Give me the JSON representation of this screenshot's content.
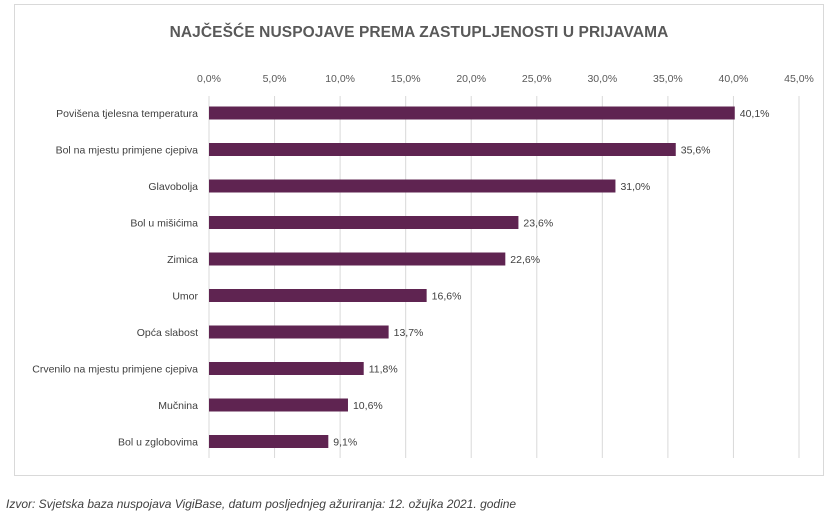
{
  "chart_data": {
    "type": "bar",
    "orientation": "horizontal",
    "title": "NAJČEŠĆE NUSPOJAVE PREMA ZASTUPLJENOSTI U PRIJAVAMA",
    "categories": [
      "Povišena tjelesna temperatura",
      "Bol na mjestu primjene cjepiva",
      "Glavobolja",
      "Bol u mišićima",
      "Zimica",
      "Umor",
      "Opća slabost",
      "Crvenilo na mjestu primjene cjepiva",
      "Mučnina",
      "Bol u zglobovima"
    ],
    "values": [
      40.1,
      35.6,
      31.0,
      23.6,
      22.6,
      16.6,
      13.7,
      11.8,
      10.6,
      9.1
    ],
    "value_labels": [
      "40,1%",
      "35,6%",
      "31,0%",
      "23,6%",
      "22,6%",
      "16,6%",
      "13,7%",
      "11,8%",
      "10,6%",
      "9,1%"
    ],
    "xlim": [
      0,
      45
    ],
    "xticks": [
      "0,0%",
      "5,0%",
      "10,0%",
      "15,0%",
      "20,0%",
      "25,0%",
      "30,0%",
      "35,0%",
      "40,0%",
      "45,0%"
    ],
    "xaxis_position": "top",
    "grid": true,
    "legend": "none",
    "bar_color": "#5f2451",
    "grid_color": "#d9d9d9"
  },
  "source_note": "Izvor: Svjetska baza nuspojava VigiBase, datum posljednjeg ažuriranja: 12. ožujka 2021. godine"
}
